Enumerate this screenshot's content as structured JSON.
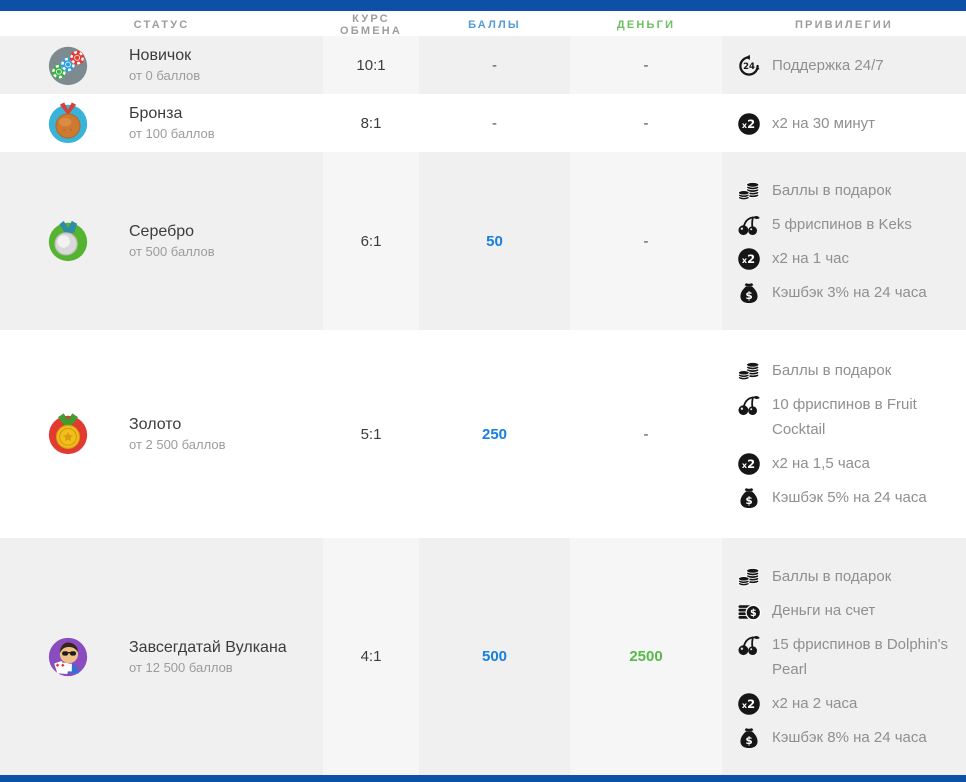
{
  "theme": {
    "bar_color": "#0d50a7",
    "points_header_color": "#549bd5",
    "money_header_color": "#6cc161",
    "points_value_color": "#177fe0",
    "money_value_color": "#55bb47",
    "shaded_row_color": "#f0f0f0",
    "shaded_row_light_color": "#f6f6f6"
  },
  "table": {
    "columns": [
      {
        "key": "status",
        "label": "СТАТУС"
      },
      {
        "key": "rate",
        "label": "КУРС ОБМЕНА"
      },
      {
        "key": "points",
        "label": "БАЛЛЫ"
      },
      {
        "key": "money",
        "label": "ДЕНЬГИ"
      },
      {
        "key": "privileges",
        "label": "ПРИВИЛЕГИИ"
      }
    ],
    "rows": [
      {
        "status": {
          "name": "Новичок",
          "threshold": "от 0 баллов",
          "icon": "poker-chips"
        },
        "rate": "10:1",
        "points": "-",
        "money": "-",
        "shaded": true,
        "privileges": [
          {
            "icon": "support-24-7",
            "text": "Поддержка 24/7"
          }
        ]
      },
      {
        "status": {
          "name": "Бронза",
          "threshold": "от 100 баллов",
          "icon": "bronze-medal"
        },
        "rate": "8:1",
        "points": "-",
        "money": "-",
        "shaded": false,
        "privileges": [
          {
            "icon": "x2-multiplier",
            "text": "x2 на 30 минут"
          }
        ]
      },
      {
        "status": {
          "name": "Серебро",
          "threshold": "от 500 баллов",
          "icon": "silver-medal"
        },
        "rate": "6:1",
        "points": "50",
        "money": "-",
        "shaded": true,
        "privileges": [
          {
            "icon": "coins-stack",
            "text": "Баллы в подарок"
          },
          {
            "icon": "cherries",
            "text": "5 фриспинов в Keks"
          },
          {
            "icon": "x2-multiplier",
            "text": "x2 на 1 час"
          },
          {
            "icon": "money-bag",
            "text": "Кэшбэк 3% на 24 часа"
          }
        ]
      },
      {
        "status": {
          "name": "Золото",
          "threshold": "от 2 500 баллов",
          "icon": "gold-medal"
        },
        "rate": "5:1",
        "points": "250",
        "money": "-",
        "shaded": false,
        "privileges": [
          {
            "icon": "coins-stack",
            "text": "Баллы в подарок"
          },
          {
            "icon": "cherries",
            "text": "10 фриспинов в Fruit Cocktail"
          },
          {
            "icon": "x2-multiplier",
            "text": "x2 на 1,5 часа"
          },
          {
            "icon": "money-bag",
            "text": "Кэшбэк 5% на 24 часа"
          }
        ]
      },
      {
        "status": {
          "name": "Завсегдатай Вулкана",
          "threshold": "от 12 500 баллов",
          "icon": "vip-player"
        },
        "rate": "4:1",
        "points": "500",
        "money": "2500",
        "shaded": true,
        "privileges": [
          {
            "icon": "coins-stack",
            "text": "Баллы в подарок"
          },
          {
            "icon": "coins-dollar",
            "text": "Деньги на счет"
          },
          {
            "icon": "cherries",
            "text": "15 фриспинов в Dolphin's Pearl"
          },
          {
            "icon": "x2-multiplier",
            "text": "x2 на 2 часа"
          },
          {
            "icon": "money-bag",
            "text": "Кэшбэк 8% на 24 часа"
          }
        ]
      }
    ]
  }
}
